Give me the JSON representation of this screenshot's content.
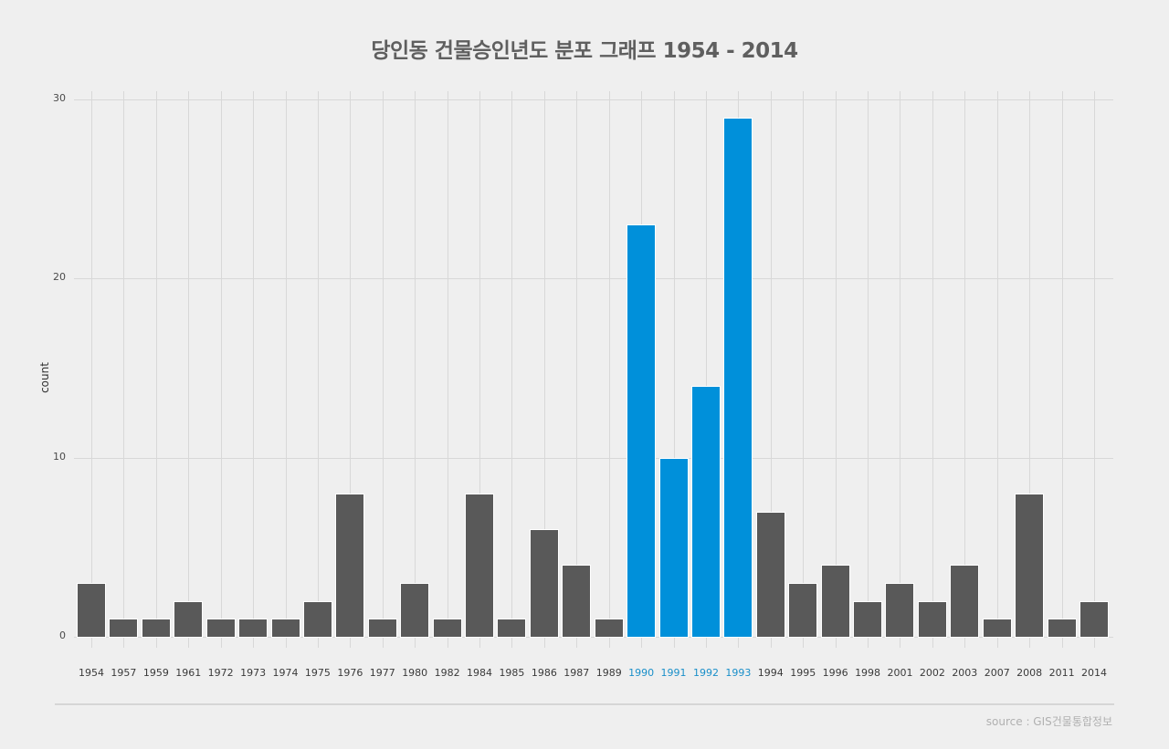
{
  "title": "당인동 건물승인년도 분포 그래프 1954 - 2014",
  "source": "source : GIS건물통합정보",
  "colors": {
    "default_bar": "#595959",
    "highlight_bar": "#0090da",
    "highlight_label": "#1a8fc9",
    "background": "#efefef",
    "grid": "#d8d8d8"
  },
  "chart_data": {
    "type": "bar",
    "title": "당인동 건물승인년도 분포 그래프 1954 - 2014",
    "xlabel": "",
    "ylabel": "count",
    "ylim": [
      0,
      30
    ],
    "yticks": [
      0,
      10,
      20,
      30
    ],
    "grid": true,
    "legend": null,
    "categories": [
      "1954",
      "1957",
      "1959",
      "1961",
      "1972",
      "1973",
      "1974",
      "1975",
      "1976",
      "1977",
      "1980",
      "1982",
      "1984",
      "1985",
      "1986",
      "1987",
      "1989",
      "1990",
      "1991",
      "1992",
      "1993",
      "1994",
      "1995",
      "1996",
      "1998",
      "2001",
      "2002",
      "2003",
      "2007",
      "2008",
      "2011",
      "2014"
    ],
    "values": [
      3,
      1,
      1,
      2,
      1,
      1,
      1,
      2,
      8,
      1,
      3,
      1,
      8,
      1,
      6,
      4,
      1,
      23,
      10,
      14,
      29,
      7,
      3,
      4,
      2,
      3,
      2,
      4,
      1,
      8,
      1,
      2
    ],
    "highlighted": [
      "1990",
      "1991",
      "1992",
      "1993"
    ],
    "annotation": "source : GIS건물통합정보"
  }
}
